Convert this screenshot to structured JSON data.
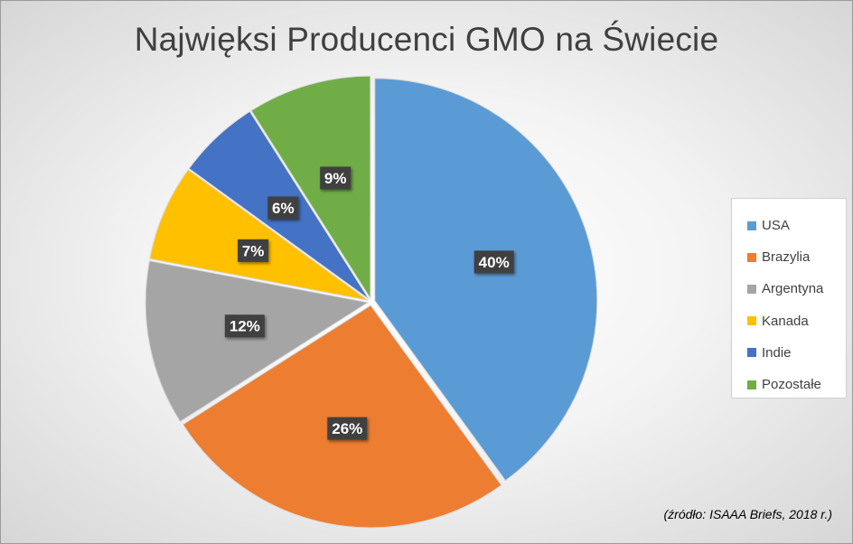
{
  "chart_data": {
    "type": "pie",
    "title": "Najwięksi Producenci GMO na Świecie",
    "categories": [
      "USA",
      "Brazylia",
      "Argentyna",
      "Kanada",
      "Indie",
      "Pozostałe"
    ],
    "values": [
      40,
      26,
      12,
      7,
      6,
      9
    ],
    "value_labels": [
      "40%",
      "26%",
      "12%",
      "7%",
      "6%",
      "9%"
    ],
    "colors": [
      "#5B9BD5",
      "#ED7D31",
      "#A5A5A5",
      "#FFC000",
      "#4472C4",
      "#70AD47"
    ],
    "legend_position": "right",
    "source_note": "(źródło: ISAAA Briefs, 2018 r.)"
  }
}
